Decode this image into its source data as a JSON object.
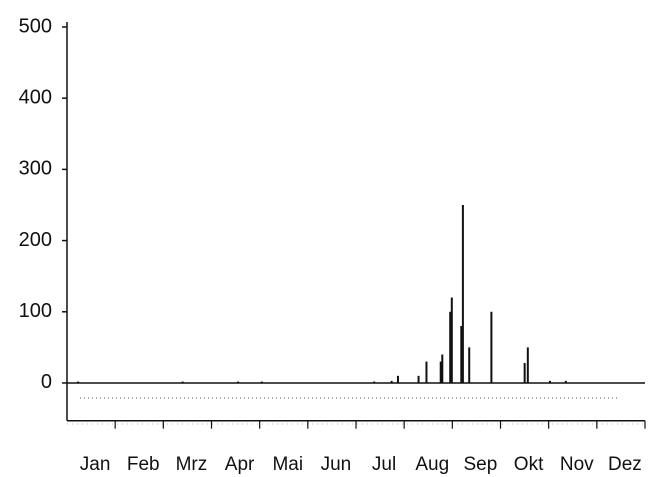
{
  "chart_data": {
    "type": "bar",
    "categories": [
      "Jan",
      "Feb",
      "Mrz",
      "Apr",
      "Mai",
      "Jun",
      "Jul",
      "Aug",
      "Sep",
      "Okt",
      "Nov",
      "Dez"
    ],
    "x": [
      7,
      73,
      108,
      123,
      194,
      205,
      209,
      222,
      227,
      236,
      237,
      242,
      243,
      249,
      250,
      254,
      268,
      289,
      291,
      305,
      315
    ],
    "values": [
      2,
      2,
      2,
      2,
      2,
      3,
      10,
      10,
      30,
      30,
      40,
      100,
      120,
      80,
      250,
      50,
      100,
      28,
      50,
      3,
      3
    ],
    "xlim": [
      0,
      365
    ],
    "ylim": [
      -53,
      500
    ],
    "yticks": [
      0,
      100,
      200,
      300,
      400,
      500
    ],
    "color": "#111111"
  }
}
